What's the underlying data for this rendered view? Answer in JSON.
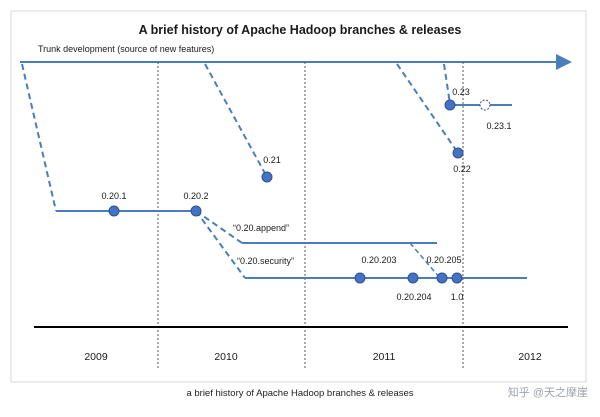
{
  "title": "A brief history of Apache Hadoop branches & releases",
  "trunk_label": "Trunk development (source of new features)",
  "branches": {
    "append": "“0.20.append”",
    "security": "“0.20.security”"
  },
  "releases": {
    "r0201": "0.20.1",
    "r0202": "0.20.2",
    "r021": "0.21",
    "r023": "0.23",
    "r0231": "0.23.1",
    "r022": "0.22",
    "r020203": "0.20.203",
    "r020204": "0.20.204",
    "r020205": "0.20.205",
    "r10": "1.0"
  },
  "years": [
    "2009",
    "2010",
    "2011",
    "2012"
  ],
  "caption": "a brief history of Apache Hadoop branches & releases",
  "watermark": "知乎 @天之摩崖",
  "colors": {
    "line": "#4a7ebb",
    "dot": "#4472c4",
    "dot_stroke": "#2f528f",
    "axis": "#000000",
    "divider": "#555555",
    "frame": "#d9d9d9"
  }
}
